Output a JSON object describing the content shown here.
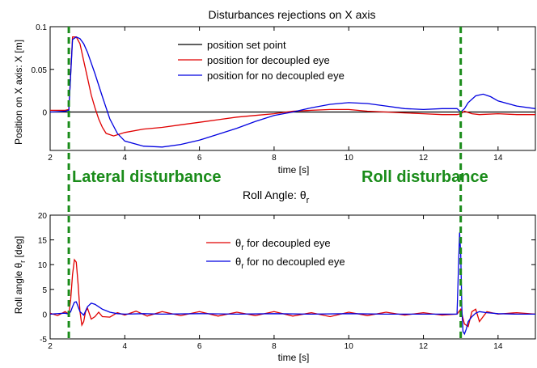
{
  "chart_data": [
    {
      "type": "line",
      "title": "Disturbances rejections on X axis",
      "xlabel": "time [s]",
      "ylabel": "Position on X axis: X [m]",
      "xlim": [
        2,
        15
      ],
      "ylim": [
        -0.045,
        0.1
      ],
      "xticks": [
        2,
        4,
        6,
        8,
        10,
        12,
        14
      ],
      "yticks": [
        0,
        0.05,
        0.1
      ],
      "ytick_labels": [
        "0",
        "0.05",
        "0.1"
      ],
      "grid": false,
      "legend": "top-center",
      "series": [
        {
          "name": "position set point",
          "color": "#000000",
          "x": [
            2,
            15
          ],
          "y": [
            0,
            0
          ]
        },
        {
          "name": "position for decoupled eye",
          "color": "#e00000",
          "x": [
            2,
            2.4,
            2.5,
            2.6,
            2.7,
            2.8,
            2.9,
            3.0,
            3.1,
            3.2,
            3.3,
            3.4,
            3.5,
            3.7,
            4.0,
            4.5,
            5.0,
            5.5,
            6.0,
            6.5,
            7.0,
            7.5,
            8.0,
            8.5,
            9.0,
            9.5,
            10.0,
            10.5,
            11.0,
            11.5,
            12.0,
            12.5,
            12.9,
            13.0,
            13.1,
            13.3,
            13.5,
            14.0,
            14.5,
            15.0
          ],
          "y": [
            0.002,
            0.002,
            0.003,
            0.088,
            0.088,
            0.08,
            0.06,
            0.04,
            0.02,
            0.005,
            -0.008,
            -0.018,
            -0.025,
            -0.028,
            -0.024,
            -0.02,
            -0.018,
            -0.015,
            -0.012,
            -0.009,
            -0.006,
            -0.004,
            -0.002,
            0.001,
            0.002,
            0.003,
            0.003,
            0.001,
            0.0,
            -0.001,
            -0.002,
            -0.003,
            -0.003,
            -0.002,
            0.001,
            -0.002,
            -0.003,
            -0.002,
            -0.003,
            -0.003
          ]
        },
        {
          "name": "position for no decoupled eye",
          "color": "#0000e0",
          "x": [
            2,
            2.4,
            2.5,
            2.6,
            2.7,
            2.8,
            2.9,
            3.0,
            3.2,
            3.4,
            3.6,
            3.8,
            4.0,
            4.5,
            5.0,
            5.5,
            6.0,
            6.5,
            7.0,
            7.5,
            8.0,
            8.5,
            9.0,
            9.5,
            10.0,
            10.5,
            11.0,
            11.5,
            12.0,
            12.5,
            12.9,
            13.0,
            13.1,
            13.2,
            13.4,
            13.6,
            13.8,
            14.0,
            14.5,
            15.0
          ],
          "y": [
            0.0,
            0.001,
            0.002,
            0.085,
            0.088,
            0.086,
            0.08,
            0.07,
            0.045,
            0.018,
            -0.008,
            -0.025,
            -0.034,
            -0.04,
            -0.041,
            -0.038,
            -0.033,
            -0.026,
            -0.019,
            -0.011,
            -0.004,
            0.0,
            0.005,
            0.009,
            0.011,
            0.01,
            0.007,
            0.004,
            0.003,
            0.004,
            0.004,
            0.0,
            0.004,
            0.011,
            0.019,
            0.021,
            0.018,
            0.013,
            0.007,
            0.004
          ]
        }
      ]
    },
    {
      "type": "line",
      "title": "Roll Angle: θ_r",
      "xlabel": "time [s]",
      "ylabel": "Roll angle θ_r [deg]",
      "xlim": [
        2,
        15
      ],
      "ylim": [
        -5,
        20
      ],
      "xticks": [
        2,
        4,
        6,
        8,
        10,
        12,
        14
      ],
      "yticks": [
        -5,
        0,
        5,
        10,
        15,
        20
      ],
      "grid": false,
      "legend": "top-center",
      "series": [
        {
          "name": "θ_r for decoupled eye",
          "color": "#e00000",
          "x": [
            2,
            2.2,
            2.4,
            2.5,
            2.55,
            2.6,
            2.65,
            2.7,
            2.75,
            2.8,
            2.85,
            2.9,
            2.95,
            3.0,
            3.1,
            3.2,
            3.3,
            3.4,
            3.6,
            3.8,
            4.0,
            4.3,
            4.6,
            5.0,
            5.5,
            6.0,
            6.5,
            7.0,
            7.5,
            8.0,
            8.5,
            9.0,
            9.5,
            10.0,
            10.5,
            11.0,
            11.5,
            12.0,
            12.5,
            12.9,
            13.0,
            13.05,
            13.1,
            13.2,
            13.3,
            13.4,
            13.5,
            13.7,
            14.0,
            14.5,
            15.0
          ],
          "y": [
            0.2,
            -0.3,
            0.5,
            0.0,
            3.0,
            8.0,
            11.0,
            10.5,
            6.0,
            0.5,
            -2.2,
            -1.5,
            0.5,
            1.2,
            -1.0,
            -0.5,
            0.4,
            -0.5,
            -0.6,
            0.3,
            -0.2,
            0.6,
            -0.4,
            0.5,
            -0.3,
            0.5,
            -0.4,
            0.4,
            -0.3,
            0.5,
            -0.4,
            0.3,
            -0.5,
            0.4,
            -0.3,
            0.4,
            -0.2,
            0.3,
            -0.2,
            0.0,
            1.0,
            -0.5,
            -2.0,
            -2.5,
            0.5,
            1.0,
            -1.5,
            0.5,
            0.0,
            0.3,
            0.0
          ]
        },
        {
          "name": "θ_r for no decoupled eye",
          "color": "#0000e0",
          "x": [
            2,
            2.4,
            2.5,
            2.55,
            2.6,
            2.65,
            2.7,
            2.75,
            2.8,
            2.9,
            3.0,
            3.1,
            3.2,
            3.4,
            3.6,
            3.8,
            4.0,
            4.5,
            5.0,
            6.0,
            7.0,
            8.0,
            9.0,
            10.0,
            11.0,
            12.0,
            12.9,
            12.97,
            13.0,
            13.03,
            13.06,
            13.1,
            13.15,
            13.2,
            13.3,
            13.4,
            13.5,
            13.7,
            14.0,
            14.5,
            15.0
          ],
          "y": [
            0.0,
            0.2,
            0.0,
            0.5,
            1.5,
            2.4,
            2.5,
            1.5,
            0.5,
            -0.2,
            1.5,
            2.2,
            2.0,
            1.0,
            0.4,
            0.1,
            0.0,
            0.1,
            0.0,
            0.1,
            0.0,
            0.1,
            0.0,
            0.1,
            0.0,
            0.0,
            0.0,
            16.5,
            12.0,
            1.0,
            -3.5,
            -4.0,
            -3.0,
            -1.5,
            -0.5,
            0.2,
            0.5,
            0.3,
            0.1,
            0.0,
            0.0
          ]
        }
      ]
    }
  ],
  "annotations": {
    "lateral": {
      "text": "Lateral disturbance",
      "time": 2.5,
      "line_color": "#1a8c1a"
    },
    "roll": {
      "text": "Roll disturbance",
      "time": 13.0,
      "line_color": "#1a8c1a"
    }
  }
}
